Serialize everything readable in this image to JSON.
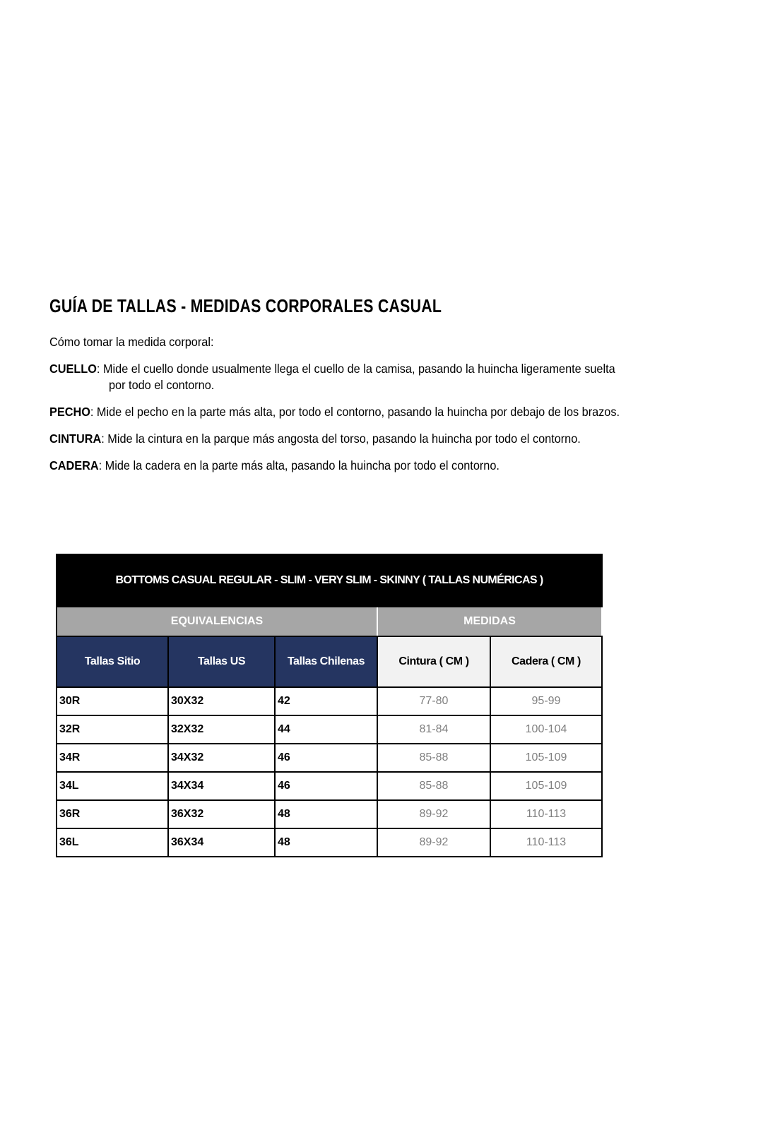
{
  "title": "GUÍA DE TALLAS - MEDIDAS CORPORALES CASUAL",
  "intro": "Cómo tomar la medida corporal:",
  "instructions": [
    {
      "label": "CUELLO",
      "text": "Mide el cuello donde usualmente llega el cuello de la camisa, pasando la huincha ligeramente suelta",
      "text2": "por todo el contorno."
    },
    {
      "label": "PECHO",
      "text": "Mide el pecho en la parte más alta, por todo el contorno, pasando la huincha por debajo de los brazos."
    },
    {
      "label": "CINTURA",
      "text": "Mide la cintura en la parque más angosta del torso, pasando la huincha por todo el contorno."
    },
    {
      "label": "CADERA",
      "text": "Mide la cadera en la parte más alta, pasando la huincha por todo el contorno."
    }
  ],
  "table": {
    "caption": "BOTTOMS CASUAL REGULAR - SLIM - VERY SLIM - SKINNY ( TALLAS NUMÉRICAS )",
    "groups": [
      "EQUIVALENCIAS",
      "MEDIDAS"
    ],
    "headers": [
      "Tallas Sitio",
      "Tallas US",
      "Tallas Chilenas",
      "Cintura ( CM )",
      "Cadera ( CM )"
    ],
    "rows": [
      [
        "30R",
        "30X32",
        "42",
        "77-80",
        "95-99"
      ],
      [
        "32R",
        "32X32",
        "44",
        "81-84",
        "100-104"
      ],
      [
        "34R",
        "34X32",
        "46",
        "85-88",
        "105-109"
      ],
      [
        "34L",
        "34X34",
        "46",
        "85-88",
        "105-109"
      ],
      [
        "36R",
        "36X32",
        "48",
        "89-92",
        "110-113"
      ],
      [
        "36L",
        "36X34",
        "48",
        "89-92",
        "110-113"
      ]
    ],
    "colors": {
      "header_blue": "#253561",
      "group_gray": "#a6a6a6",
      "caption_black": "#000000",
      "measure_text": "#7f7f7f"
    }
  }
}
